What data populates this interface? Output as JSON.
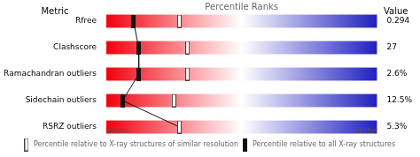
{
  "chart_data": {
    "type": "dot",
    "categories": [
      "Rfree",
      "Clashscore",
      "Ramachandran outliers",
      "Sidechain outliers",
      "RSRZ outliers"
    ],
    "series": [
      {
        "name": "Percentile relative to all X-ray structures",
        "color": "#111111",
        "marker": "square",
        "line_style": "solid",
        "values": [
          0.1,
          0.12,
          0.12,
          0.06,
          0.27
        ]
      },
      {
        "name": "Percentile relative to X-ray structures of similar resolution",
        "color": "#444444",
        "marker": "open_square",
        "line_style": "none",
        "values": [
          0.27,
          0.3,
          0.3,
          0.25,
          0.27
        ]
      }
    ],
    "orientation": "horizontal",
    "xlabel": "Percentile Ranks",
    "ylabel": "Metric",
    "value_column": {
      "title": "Value",
      "labels": [
        "0.294",
        "27",
        "2.6%",
        "12.5%",
        "5.3%"
      ]
    },
    "x_end_labels": [
      "Worse",
      "Better"
    ],
    "xlim": [
      0,
      1
    ],
    "tick_labels": "y",
    "grid": false,
    "legend": "bottom"
  }
}
